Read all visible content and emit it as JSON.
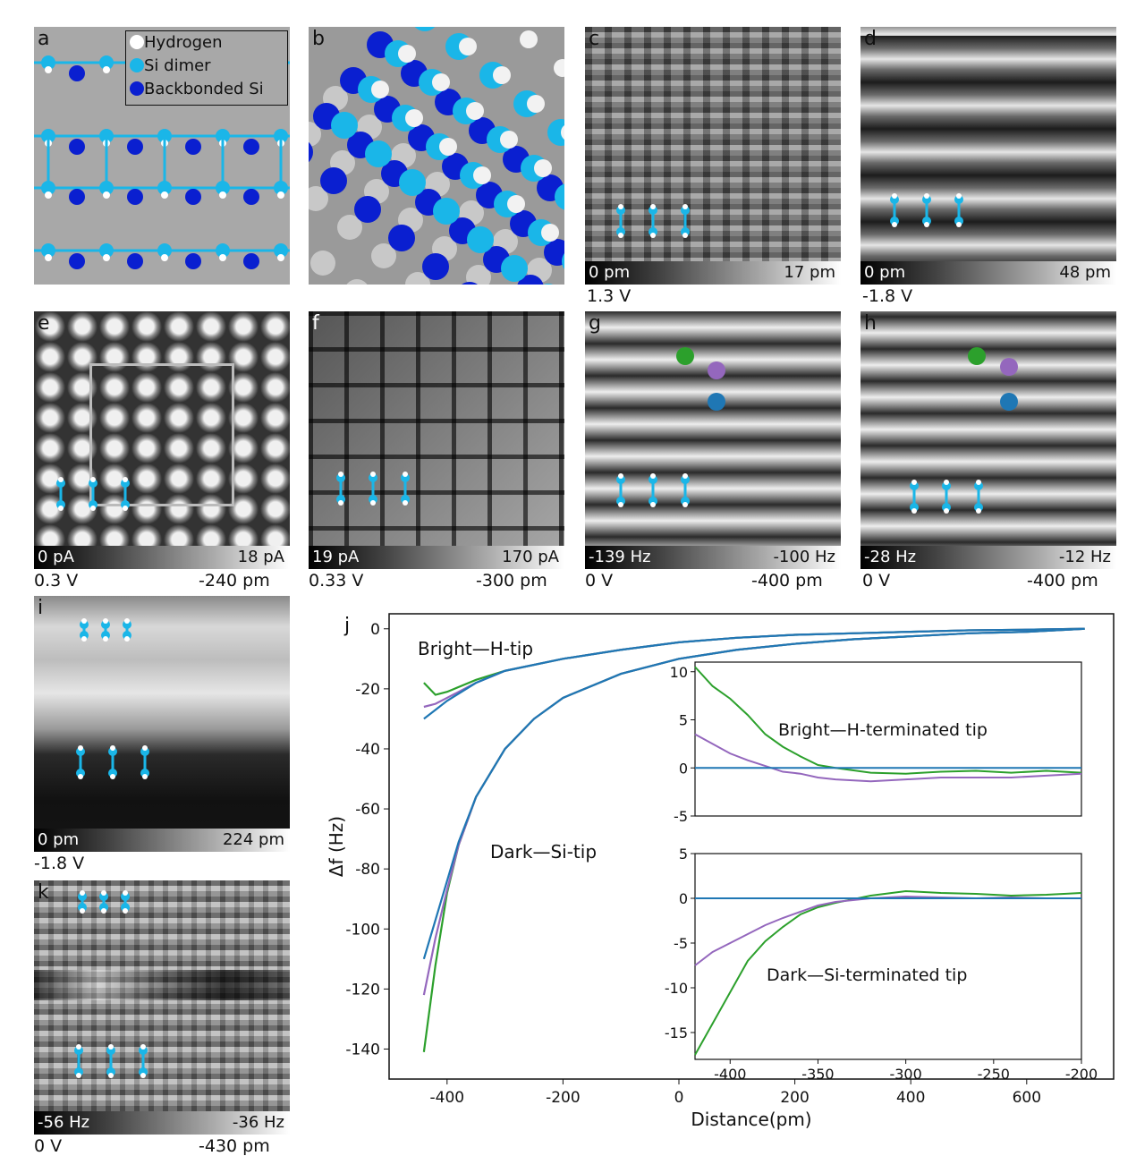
{
  "panels": {
    "a": {
      "label": "a",
      "legend": [
        {
          "name": "Hydrogen",
          "color": "#ffffff"
        },
        {
          "name": "Si dimer",
          "color": "#1ab6e8"
        },
        {
          "name": "Backbonded Si",
          "color": "#0a1fd0"
        }
      ]
    },
    "b": {
      "label": "b"
    },
    "c": {
      "label": "c",
      "scale_min": "0 pm",
      "scale_max": "17 pm",
      "bias": "1.3 V"
    },
    "d": {
      "label": "d",
      "scale_min": "0 pm",
      "scale_max": "48 pm",
      "bias": "-1.8 V"
    },
    "e": {
      "label": "e",
      "scale_min": "0 pA",
      "scale_max": "18 pA",
      "bias": "0.3 V",
      "height": "-240 pm"
    },
    "f": {
      "label": "f",
      "scale_min": "19 pA",
      "scale_max": "170 pA",
      "bias": "0.33 V",
      "height": "-300 pm"
    },
    "g": {
      "label": "g",
      "scale_min": "-139 Hz",
      "scale_max": "-100 Hz",
      "bias": "0 V",
      "height": "-400 pm"
    },
    "h": {
      "label": "h",
      "scale_min": "-28 Hz",
      "scale_max": "-12 Hz",
      "bias": "0 V",
      "height": "-400 pm"
    },
    "i": {
      "label": "i",
      "scale_min": "0 pm",
      "scale_max": "224 pm",
      "bias": "-1.8 V"
    },
    "k": {
      "label": "k",
      "scale_min": "-56 Hz",
      "scale_max": "-36 Hz",
      "bias": "0 V",
      "height": "-430 pm"
    },
    "j": {
      "label": "j"
    }
  },
  "marker_colors": {
    "green": "#2ca02c",
    "purple": "#9467bd",
    "blue": "#1f77b4"
  },
  "chart_data": [
    {
      "type": "line",
      "xlabel": "Distance(pm)",
      "ylabel": "Δf (Hz)",
      "xlim": [
        -500,
        750
      ],
      "ylim": [
        -150,
        5
      ],
      "xticks": [
        "-400",
        "-200",
        "0",
        "200",
        "400",
        "600"
      ],
      "yticks": [
        "0",
        "-20",
        "-40",
        "-60",
        "-80",
        "-100",
        "-120",
        "-140"
      ],
      "annotations": [
        "Bright—H-tip",
        "Dark—Si-tip"
      ],
      "series": [
        {
          "color": "#2ca02c",
          "x": [
            -440,
            -420,
            -400,
            -350,
            -300,
            -200,
            -100,
            0,
            100,
            200,
            300,
            400,
            500,
            600,
            700
          ],
          "y": [
            -18,
            -22,
            -21,
            -17,
            -14,
            -10,
            -7,
            -4.5,
            -3,
            -2,
            -1.5,
            -1,
            -0.5,
            -0.3,
            0
          ]
        },
        {
          "color": "#9467bd",
          "x": [
            -440,
            -420,
            -400,
            -350,
            -300,
            -200,
            -100,
            0,
            100,
            200,
            300,
            400,
            500,
            600,
            700
          ],
          "y": [
            -26,
            -25,
            -23,
            -18,
            -14,
            -10,
            -7,
            -4.5,
            -3,
            -2,
            -1.5,
            -1,
            -0.5,
            -0.3,
            0
          ]
        },
        {
          "color": "#1f77b4",
          "x": [
            -440,
            -420,
            -400,
            -350,
            -300,
            -200,
            -100,
            0,
            100,
            200,
            300,
            400,
            500,
            600,
            700
          ],
          "y": [
            -30,
            -27,
            -24,
            -18,
            -14,
            -10,
            -7,
            -4.5,
            -3,
            -2,
            -1.5,
            -1,
            -0.5,
            -0.3,
            0
          ]
        },
        {
          "color": "#2ca02c",
          "x": [
            -440,
            -420,
            -400,
            -380,
            -350,
            -300,
            -250,
            -200,
            -100,
            0,
            100,
            200,
            300,
            400,
            500,
            600,
            700
          ],
          "y": [
            -141,
            -112,
            -88,
            -72,
            -56,
            -40,
            -30,
            -23,
            -15,
            -10,
            -7,
            -5,
            -3.5,
            -2.5,
            -1.5,
            -1,
            0
          ]
        },
        {
          "color": "#9467bd",
          "x": [
            -440,
            -420,
            -400,
            -380,
            -350,
            -300,
            -250,
            -200,
            -100,
            0,
            100,
            200,
            300,
            400,
            500,
            600,
            700
          ],
          "y": [
            -122,
            -103,
            -87,
            -72,
            -56,
            -40,
            -30,
            -23,
            -15,
            -10,
            -7,
            -5,
            -3.5,
            -2.5,
            -1.5,
            -1,
            0
          ]
        },
        {
          "color": "#1f77b4",
          "x": [
            -440,
            -420,
            -400,
            -380,
            -350,
            -300,
            -250,
            -200,
            -100,
            0,
            100,
            200,
            300,
            400,
            500,
            600,
            700
          ],
          "y": [
            -110,
            -97,
            -84,
            -71,
            -56,
            -40,
            -30,
            -23,
            -15,
            -10,
            -7,
            -5,
            -3.5,
            -2.5,
            -1.5,
            -1,
            0
          ]
        }
      ]
    },
    {
      "type": "line",
      "annotation": "Bright—H-terminated tip",
      "xlim": [
        -420,
        -200
      ],
      "ylim": [
        -5,
        11
      ],
      "yticks": [
        "10",
        "5",
        "0",
        "-5"
      ],
      "series": [
        {
          "color": "#2ca02c",
          "x": [
            -420,
            -410,
            -400,
            -390,
            -380,
            -370,
            -360,
            -350,
            -340,
            -320,
            -300,
            -280,
            -260,
            -240,
            -220,
            -200
          ],
          "y": [
            10.5,
            8.5,
            7.2,
            5.5,
            3.5,
            2.2,
            1.2,
            0.3,
            0,
            -0.5,
            -0.6,
            -0.4,
            -0.3,
            -0.5,
            -0.3,
            -0.5
          ]
        },
        {
          "color": "#9467bd",
          "x": [
            -420,
            -410,
            -400,
            -390,
            -380,
            -370,
            -360,
            -350,
            -340,
            -320,
            -300,
            -280,
            -260,
            -240,
            -220,
            -200
          ],
          "y": [
            3.5,
            2.5,
            1.5,
            0.8,
            0.2,
            -0.4,
            -0.6,
            -1,
            -1.2,
            -1.4,
            -1.2,
            -1,
            -1,
            -1,
            -0.8,
            -0.6
          ]
        },
        {
          "color": "#1f77b4",
          "x": [
            -420,
            -200
          ],
          "y": [
            0,
            0
          ]
        }
      ]
    },
    {
      "type": "line",
      "annotation": "Dark—Si-terminated tip",
      "xlim": [
        -420,
        -200
      ],
      "ylim": [
        -18,
        5
      ],
      "xticks": [
        "-400",
        "-350",
        "-300",
        "-250",
        "-200"
      ],
      "yticks": [
        "5",
        "0",
        "-5",
        "-10",
        "-15"
      ],
      "series": [
        {
          "color": "#2ca02c",
          "x": [
            -420,
            -410,
            -400,
            -390,
            -380,
            -370,
            -360,
            -350,
            -340,
            -320,
            -300,
            -280,
            -260,
            -240,
            -220,
            -200
          ],
          "y": [
            -17.5,
            -14,
            -10.5,
            -7,
            -4.8,
            -3.2,
            -1.8,
            -1,
            -0.5,
            0.3,
            0.8,
            0.6,
            0.5,
            0.3,
            0.4,
            0.6
          ]
        },
        {
          "color": "#9467bd",
          "x": [
            -420,
            -410,
            -400,
            -390,
            -380,
            -370,
            -360,
            -350,
            -340,
            -320,
            -300,
            -280,
            -260,
            -240,
            -220,
            -200
          ],
          "y": [
            -7.5,
            -6,
            -5,
            -4,
            -3,
            -2.2,
            -1.5,
            -0.8,
            -0.4,
            0,
            0.2,
            0.1,
            0,
            0.1,
            0,
            0
          ]
        },
        {
          "color": "#1f77b4",
          "x": [
            -420,
            -200
          ],
          "y": [
            0,
            0
          ]
        }
      ]
    }
  ]
}
